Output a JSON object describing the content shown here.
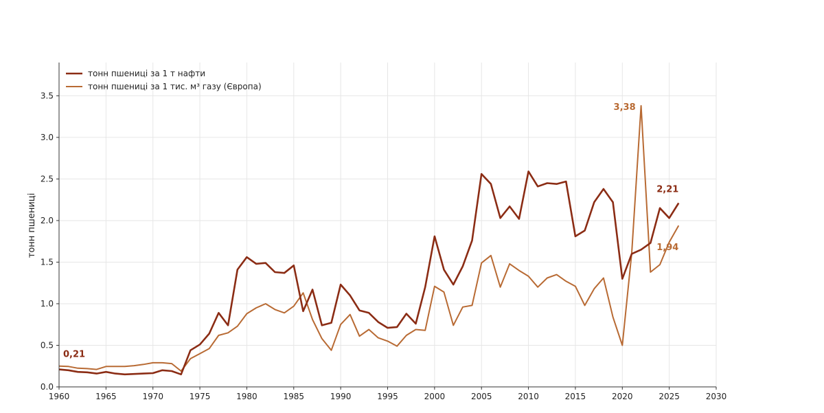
{
  "chart_data": {
    "type": "line",
    "title": "",
    "xlabel": "",
    "ylabel": "тонн пшениці",
    "xlim": [
      1960,
      2030
    ],
    "ylim": [
      0,
      3.9
    ],
    "x_ticks": [
      1960,
      1965,
      1970,
      1975,
      1980,
      1985,
      1990,
      1995,
      2000,
      2005,
      2010,
      2015,
      2020,
      2025,
      2030
    ],
    "y_ticks": [
      0.0,
      0.5,
      1.0,
      1.5,
      2.0,
      2.5,
      3.0,
      3.5
    ],
    "x_tick_labels": [
      "1960",
      "1965",
      "1970",
      "1975",
      "1980",
      "1985",
      "1990",
      "1995",
      "2000",
      "2005",
      "2010",
      "2015",
      "2020",
      "2025",
      "2030"
    ],
    "y_tick_labels": [
      "0.0",
      "0.5",
      "1.0",
      "1.5",
      "2.0",
      "2.5",
      "3.0",
      "3.5"
    ],
    "grid": true,
    "legend_position": "top-left",
    "series": [
      {
        "name": "тонн пшениці за 1 т нафти",
        "color": "#8b2c14",
        "points": [
          [
            1960,
            0.21
          ],
          [
            1961,
            0.2
          ],
          [
            1962,
            0.18
          ],
          [
            1963,
            0.175
          ],
          [
            1964,
            0.16
          ],
          [
            1965,
            0.18
          ],
          [
            1966,
            0.16
          ],
          [
            1967,
            0.15
          ],
          [
            1968,
            0.155
          ],
          [
            1969,
            0.16
          ],
          [
            1970,
            0.165
          ],
          [
            1971,
            0.2
          ],
          [
            1972,
            0.19
          ],
          [
            1973,
            0.15
          ],
          [
            1974,
            0.44
          ],
          [
            1975,
            0.51
          ],
          [
            1976,
            0.64
          ],
          [
            1977,
            0.89
          ],
          [
            1978,
            0.74
          ],
          [
            1979,
            1.41
          ],
          [
            1980,
            1.56
          ],
          [
            1981,
            1.48
          ],
          [
            1982,
            1.49
          ],
          [
            1983,
            1.38
          ],
          [
            1984,
            1.37
          ],
          [
            1985,
            1.46
          ],
          [
            1986,
            0.91
          ],
          [
            1987,
            1.17
          ],
          [
            1988,
            0.74
          ],
          [
            1989,
            0.77
          ],
          [
            1990,
            1.23
          ],
          [
            1991,
            1.1
          ],
          [
            1992,
            0.92
          ],
          [
            1993,
            0.89
          ],
          [
            1994,
            0.78
          ],
          [
            1995,
            0.71
          ],
          [
            1996,
            0.72
          ],
          [
            1997,
            0.88
          ],
          [
            1998,
            0.76
          ],
          [
            1999,
            1.2
          ],
          [
            2000,
            1.81
          ],
          [
            2001,
            1.41
          ],
          [
            2002,
            1.23
          ],
          [
            2003,
            1.45
          ],
          [
            2004,
            1.76
          ],
          [
            2005,
            2.56
          ],
          [
            2006,
            2.44
          ],
          [
            2007,
            2.03
          ],
          [
            2008,
            2.17
          ],
          [
            2009,
            2.02
          ],
          [
            2010,
            2.59
          ],
          [
            2011,
            2.41
          ],
          [
            2012,
            2.45
          ],
          [
            2013,
            2.44
          ],
          [
            2014,
            2.47
          ],
          [
            2015,
            1.81
          ],
          [
            2016,
            1.88
          ],
          [
            2017,
            2.22
          ],
          [
            2018,
            2.38
          ],
          [
            2019,
            2.22
          ],
          [
            2020,
            1.3
          ],
          [
            2021,
            1.6
          ],
          [
            2022,
            1.65
          ],
          [
            2023,
            1.73
          ],
          [
            2024,
            2.15
          ],
          [
            2025,
            2.03
          ],
          [
            2026,
            2.21
          ]
        ]
      },
      {
        "name": "тонн пшениці за 1 тис. м³ газу (Європа)",
        "color": "#b86a33",
        "points": [
          [
            1960,
            0.25
          ],
          [
            1961,
            0.245
          ],
          [
            1962,
            0.225
          ],
          [
            1963,
            0.22
          ],
          [
            1964,
            0.21
          ],
          [
            1965,
            0.245
          ],
          [
            1966,
            0.245
          ],
          [
            1967,
            0.245
          ],
          [
            1968,
            0.255
          ],
          [
            1969,
            0.27
          ],
          [
            1970,
            0.29
          ],
          [
            1971,
            0.29
          ],
          [
            1972,
            0.28
          ],
          [
            1973,
            0.19
          ],
          [
            1974,
            0.34
          ],
          [
            1975,
            0.4
          ],
          [
            1976,
            0.46
          ],
          [
            1977,
            0.62
          ],
          [
            1978,
            0.65
          ],
          [
            1979,
            0.73
          ],
          [
            1980,
            0.88
          ],
          [
            1981,
            0.95
          ],
          [
            1982,
            1.0
          ],
          [
            1983,
            0.93
          ],
          [
            1984,
            0.89
          ],
          [
            1985,
            0.97
          ],
          [
            1986,
            1.13
          ],
          [
            1987,
            0.81
          ],
          [
            1988,
            0.58
          ],
          [
            1989,
            0.44
          ],
          [
            1990,
            0.75
          ],
          [
            1991,
            0.87
          ],
          [
            1992,
            0.61
          ],
          [
            1993,
            0.69
          ],
          [
            1994,
            0.59
          ],
          [
            1995,
            0.55
          ],
          [
            1996,
            0.49
          ],
          [
            1997,
            0.62
          ],
          [
            1998,
            0.69
          ],
          [
            1999,
            0.68
          ],
          [
            2000,
            1.21
          ],
          [
            2001,
            1.14
          ],
          [
            2002,
            0.74
          ],
          [
            2003,
            0.96
          ],
          [
            2004,
            0.98
          ],
          [
            2005,
            1.49
          ],
          [
            2006,
            1.58
          ],
          [
            2007,
            1.2
          ],
          [
            2008,
            1.48
          ],
          [
            2009,
            1.4
          ],
          [
            2010,
            1.33
          ],
          [
            2011,
            1.2
          ],
          [
            2012,
            1.31
          ],
          [
            2013,
            1.35
          ],
          [
            2014,
            1.27
          ],
          [
            2015,
            1.21
          ],
          [
            2016,
            0.98
          ],
          [
            2017,
            1.18
          ],
          [
            2018,
            1.31
          ],
          [
            2019,
            0.84
          ],
          [
            2020,
            0.5
          ],
          [
            2021,
            1.61
          ],
          [
            2022,
            3.38
          ],
          [
            2023,
            1.38
          ],
          [
            2024,
            1.47
          ],
          [
            2025,
            1.74
          ],
          [
            2026,
            1.94
          ]
        ]
      }
    ],
    "annotations": [
      {
        "text": "0,21",
        "x": 1960,
        "y": 0.21,
        "series": 0,
        "anchor": "start",
        "dx": 6,
        "dy": -18
      },
      {
        "text": "3,38",
        "x": 2022,
        "y": 3.38,
        "series": 1,
        "anchor": "end",
        "dx": -8,
        "dy": 6
      },
      {
        "text": "2,21",
        "x": 2026,
        "y": 2.21,
        "series": 0,
        "anchor": "middle",
        "dx": -16,
        "dy": -16
      },
      {
        "text": "1,94",
        "x": 2026,
        "y": 1.94,
        "series": 1,
        "anchor": "middle",
        "dx": -16,
        "dy": 36
      }
    ]
  }
}
